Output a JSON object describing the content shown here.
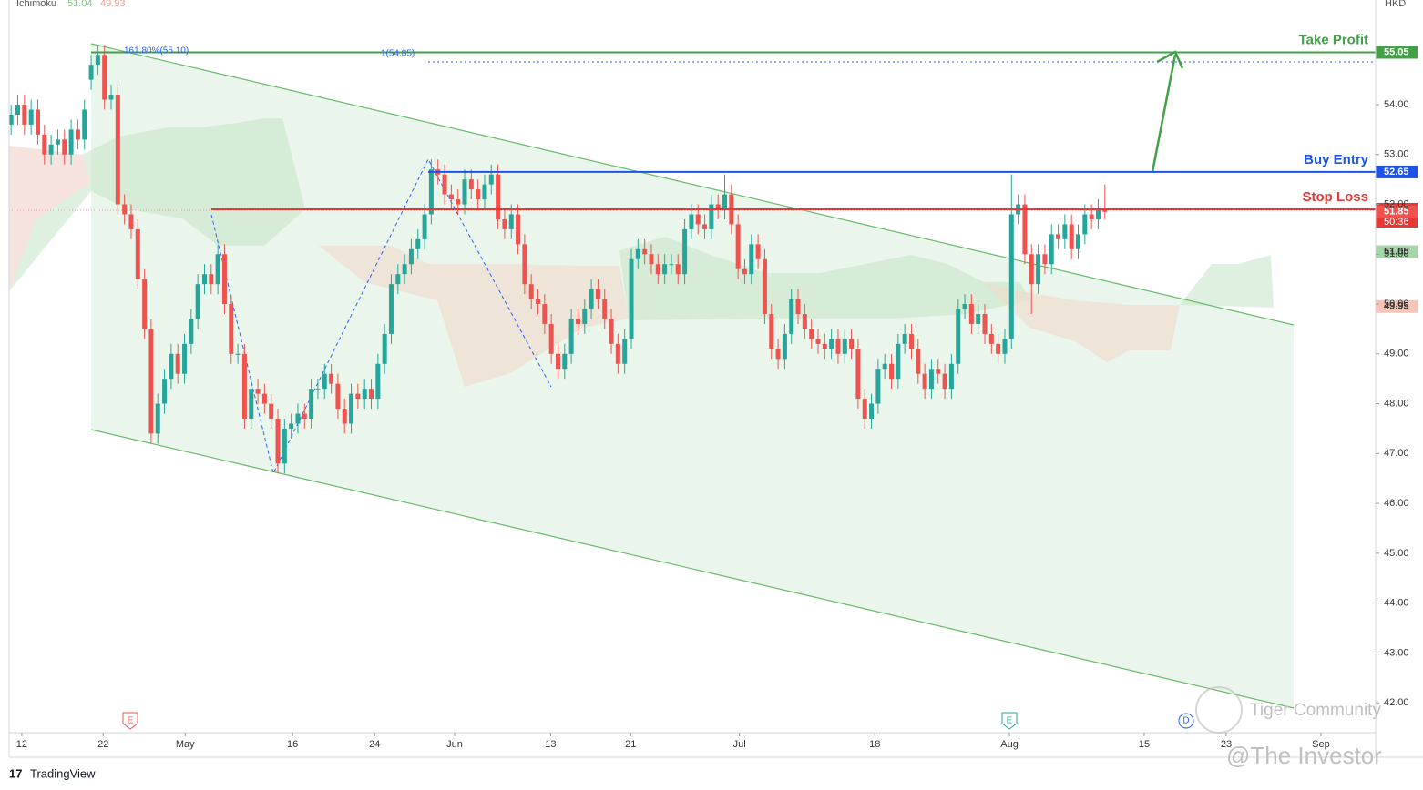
{
  "chart_data": {
    "type": "candlestick",
    "indicator": {
      "name": "Ichimoku",
      "values": [
        51.04,
        49.93
      ],
      "colors": [
        "#81c784",
        "#e5a39a"
      ]
    },
    "currency": "HKD",
    "brand": "TradingView",
    "watermarks": [
      "Tiger Community",
      "@The Investor"
    ],
    "event_markers": [
      "E",
      "E",
      "D"
    ],
    "fib_labels": [
      "161.80%(55.10)",
      "1(54.85)"
    ],
    "countdown": "50:36",
    "up_color": "#26a69a",
    "down_color": "#ef5350",
    "ylim": [
      41.4,
      56.1
    ],
    "yticks": [
      {
        "value": 42,
        "label": "42.00"
      },
      {
        "value": 43,
        "label": "43.00"
      },
      {
        "value": 44,
        "label": "44.00"
      },
      {
        "value": 45,
        "label": "45.00"
      },
      {
        "value": 46,
        "label": "46.00"
      },
      {
        "value": 47,
        "label": "47.00"
      },
      {
        "value": 48,
        "label": "48.00"
      },
      {
        "value": 49,
        "label": "49.00"
      },
      {
        "value": 50,
        "label": "50.00"
      },
      {
        "value": 51,
        "label": "51.00"
      },
      {
        "value": 52,
        "label": "52.00"
      },
      {
        "value": 53,
        "label": "53.00"
      },
      {
        "value": 54,
        "label": "54.00"
      }
    ],
    "xlim": [
      -0.3,
      204.6
    ],
    "xticks": [
      {
        "value": 1.6,
        "label": "12"
      },
      {
        "value": 13.8,
        "label": "22"
      },
      {
        "value": 26.1,
        "label": "May"
      },
      {
        "value": 42.2,
        "label": "16"
      },
      {
        "value": 54.5,
        "label": "24"
      },
      {
        "value": 66.5,
        "label": "Jun"
      },
      {
        "value": 80.9,
        "label": "13"
      },
      {
        "value": 92.9,
        "label": "21"
      },
      {
        "value": 109.2,
        "label": "Jul"
      },
      {
        "value": 129.5,
        "label": "18"
      },
      {
        "value": 149.7,
        "label": "Aug"
      },
      {
        "value": 169.9,
        "label": "15"
      },
      {
        "value": 182.2,
        "label": "23"
      },
      {
        "value": 196.4,
        "label": "Sep"
      }
    ],
    "levels": [
      {
        "name": "Take Profit",
        "value": 55.05,
        "color": "#43a047"
      },
      {
        "name": "Buy Entry",
        "value": 52.65,
        "color": "#1e53e5"
      },
      {
        "name": "Stop Loss",
        "value": 51.9,
        "color": "#e53935"
      }
    ],
    "price_labels": [
      {
        "value": 55.05,
        "label": "55.05",
        "color": "#43a047"
      },
      {
        "value": 52.65,
        "label": "52.65",
        "color": "#1e53e5"
      },
      {
        "value": 51.9,
        "label": "51.90",
        "color": "#e53935"
      },
      {
        "value": 51.85,
        "label": "51.85",
        "color": "#ef5350"
      },
      {
        "value": 51.05,
        "label": "51.05",
        "color": "#a5d6a7"
      },
      {
        "value": 49.95,
        "label": "49.95",
        "color": "#f5c6b8"
      }
    ],
    "candles": [
      [
        53.6,
        54.0,
        53.4,
        53.8
      ],
      [
        53.8,
        54.2,
        53.6,
        54.0
      ],
      [
        54.0,
        54.2,
        53.4,
        53.6
      ],
      [
        53.6,
        54.1,
        53.4,
        53.9
      ],
      [
        53.9,
        54.1,
        53.2,
        53.4
      ],
      [
        53.4,
        53.6,
        52.8,
        53.0
      ],
      [
        53.0,
        53.4,
        52.8,
        53.2
      ],
      [
        53.2,
        53.5,
        53.0,
        53.3
      ],
      [
        53.3,
        53.5,
        52.8,
        53.0
      ],
      [
        53.0,
        53.7,
        52.8,
        53.5
      ],
      [
        53.5,
        53.7,
        53.1,
        53.3
      ],
      [
        53.3,
        54.1,
        53.1,
        53.9
      ],
      [
        54.5,
        55.0,
        54.3,
        54.8
      ],
      [
        54.8,
        55.2,
        54.6,
        55.0
      ],
      [
        55.0,
        55.2,
        53.9,
        54.1
      ],
      [
        54.1,
        54.4,
        53.9,
        54.2
      ],
      [
        54.2,
        54.4,
        51.8,
        52.0
      ],
      [
        52.0,
        52.2,
        51.6,
        51.8
      ],
      [
        51.8,
        52.0,
        51.3,
        51.5
      ],
      [
        51.5,
        51.7,
        50.3,
        50.5
      ],
      [
        50.5,
        50.7,
        49.3,
        49.5
      ],
      [
        49.5,
        49.7,
        47.2,
        47.4
      ],
      [
        47.4,
        48.2,
        47.2,
        48.0
      ],
      [
        48.0,
        48.7,
        47.8,
        48.5
      ],
      [
        48.5,
        49.2,
        48.3,
        49.0
      ],
      [
        49.0,
        49.2,
        48.4,
        48.6
      ],
      [
        48.6,
        49.4,
        48.4,
        49.2
      ],
      [
        49.2,
        49.9,
        49.0,
        49.7
      ],
      [
        49.7,
        50.6,
        49.5,
        50.4
      ],
      [
        50.4,
        50.8,
        50.2,
        50.6
      ],
      [
        50.6,
        50.8,
        50.2,
        50.4
      ],
      [
        50.4,
        51.2,
        50.2,
        51.0
      ],
      [
        51.0,
        51.2,
        49.8,
        50.0
      ],
      [
        50.0,
        50.2,
        48.8,
        49.0
      ],
      [
        49.0,
        49.2,
        48.8,
        49.0
      ],
      [
        49.0,
        49.2,
        47.5,
        47.7
      ],
      [
        47.7,
        48.5,
        47.5,
        48.3
      ],
      [
        48.3,
        48.5,
        48.0,
        48.2
      ],
      [
        48.2,
        48.4,
        47.8,
        48.0
      ],
      [
        48.0,
        48.2,
        47.5,
        47.7
      ],
      [
        47.7,
        47.9,
        46.6,
        46.8
      ],
      [
        46.8,
        47.7,
        46.6,
        47.5
      ],
      [
        47.5,
        47.8,
        47.3,
        47.6
      ],
      [
        47.6,
        48.0,
        47.4,
        47.8
      ],
      [
        47.8,
        48.0,
        47.5,
        47.7
      ],
      [
        47.7,
        48.5,
        47.5,
        48.3
      ],
      [
        48.3,
        48.5,
        48.1,
        48.3
      ],
      [
        48.3,
        48.8,
        48.1,
        48.6
      ],
      [
        48.6,
        48.8,
        48.2,
        48.4
      ],
      [
        48.4,
        48.6,
        47.7,
        47.9
      ],
      [
        47.9,
        48.1,
        47.4,
        47.6
      ],
      [
        47.6,
        48.4,
        47.4,
        48.2
      ],
      [
        48.2,
        48.4,
        47.9,
        48.1
      ],
      [
        48.1,
        48.5,
        47.9,
        48.3
      ],
      [
        48.3,
        48.5,
        47.9,
        48.1
      ],
      [
        48.1,
        49.0,
        47.9,
        48.8
      ],
      [
        48.8,
        49.6,
        48.6,
        49.4
      ],
      [
        49.4,
        50.6,
        49.2,
        50.4
      ],
      [
        50.4,
        50.8,
        50.2,
        50.6
      ],
      [
        50.6,
        51.0,
        50.4,
        50.8
      ],
      [
        50.8,
        51.3,
        50.6,
        51.1
      ],
      [
        51.1,
        51.5,
        50.9,
        51.3
      ],
      [
        51.3,
        52.0,
        51.1,
        51.8
      ],
      [
        51.8,
        52.9,
        51.6,
        52.7
      ],
      [
        52.7,
        52.9,
        52.4,
        52.6
      ],
      [
        52.6,
        52.8,
        52.0,
        52.2
      ],
      [
        52.2,
        52.4,
        51.9,
        52.1
      ],
      [
        52.1,
        52.3,
        51.8,
        52.0
      ],
      [
        52.0,
        52.7,
        51.8,
        52.5
      ],
      [
        52.5,
        52.7,
        52.1,
        52.3
      ],
      [
        52.3,
        52.5,
        51.9,
        52.1
      ],
      [
        52.1,
        52.6,
        51.9,
        52.4
      ],
      [
        52.4,
        52.8,
        52.2,
        52.6
      ],
      [
        52.6,
        52.8,
        51.5,
        51.7
      ],
      [
        51.7,
        51.9,
        51.3,
        51.5
      ],
      [
        51.5,
        52.0,
        51.3,
        51.8
      ],
      [
        51.8,
        52.0,
        51.0,
        51.2
      ],
      [
        51.2,
        51.4,
        50.2,
        50.4
      ],
      [
        50.4,
        50.6,
        49.9,
        50.1
      ],
      [
        50.1,
        50.3,
        49.8,
        50.0
      ],
      [
        50.0,
        50.2,
        49.4,
        49.6
      ],
      [
        49.6,
        49.8,
        48.8,
        49.0
      ],
      [
        49.0,
        49.2,
        48.5,
        48.7
      ],
      [
        48.7,
        49.2,
        48.5,
        49.0
      ],
      [
        49.0,
        49.9,
        48.8,
        49.7
      ],
      [
        49.7,
        49.9,
        49.4,
        49.6
      ],
      [
        49.6,
        50.1,
        49.4,
        49.9
      ],
      [
        49.9,
        50.5,
        49.7,
        50.3
      ],
      [
        50.3,
        50.5,
        49.9,
        50.1
      ],
      [
        50.1,
        50.3,
        49.5,
        49.7
      ],
      [
        49.7,
        49.9,
        49.0,
        49.2
      ],
      [
        49.2,
        49.4,
        48.6,
        48.8
      ],
      [
        48.8,
        49.5,
        48.6,
        49.3
      ],
      [
        49.3,
        51.1,
        49.1,
        50.9
      ],
      [
        50.9,
        51.3,
        50.7,
        51.1
      ],
      [
        51.1,
        51.3,
        50.8,
        51.0
      ],
      [
        51.0,
        51.2,
        50.6,
        50.8
      ],
      [
        50.8,
        51.0,
        50.4,
        50.6
      ],
      [
        50.6,
        51.0,
        50.4,
        50.8
      ],
      [
        50.8,
        51.0,
        50.6,
        50.8
      ],
      [
        50.8,
        51.0,
        50.4,
        50.6
      ],
      [
        50.6,
        51.7,
        50.4,
        51.5
      ],
      [
        51.5,
        52.0,
        51.3,
        51.8
      ],
      [
        51.8,
        52.0,
        51.4,
        51.6
      ],
      [
        51.6,
        51.8,
        51.3,
        51.5
      ],
      [
        51.5,
        52.2,
        51.3,
        52.0
      ],
      [
        52.0,
        52.2,
        51.7,
        51.9
      ],
      [
        51.9,
        52.6,
        51.7,
        52.2
      ],
      [
        52.2,
        52.4,
        51.4,
        51.6
      ],
      [
        51.6,
        51.8,
        50.5,
        50.7
      ],
      [
        50.7,
        50.9,
        50.4,
        50.6
      ],
      [
        50.6,
        51.4,
        50.4,
        51.2
      ],
      [
        51.2,
        51.4,
        50.7,
        50.9
      ],
      [
        50.9,
        51.1,
        49.6,
        49.8
      ],
      [
        49.8,
        50.0,
        48.9,
        49.1
      ],
      [
        49.1,
        49.3,
        48.7,
        48.9
      ],
      [
        48.9,
        49.6,
        48.7,
        49.4
      ],
      [
        49.4,
        50.3,
        49.2,
        50.1
      ],
      [
        50.1,
        50.3,
        49.6,
        49.8
      ],
      [
        49.8,
        50.0,
        49.3,
        49.5
      ],
      [
        49.5,
        49.7,
        49.1,
        49.3
      ],
      [
        49.3,
        49.5,
        49.0,
        49.2
      ],
      [
        49.2,
        49.4,
        48.9,
        49.1
      ],
      [
        49.1,
        49.5,
        48.9,
        49.3
      ],
      [
        49.3,
        49.5,
        48.8,
        49.0
      ],
      [
        49.0,
        49.5,
        48.8,
        49.3
      ],
      [
        49.3,
        49.5,
        48.9,
        49.1
      ],
      [
        49.1,
        49.3,
        47.9,
        48.1
      ],
      [
        48.1,
        48.3,
        47.5,
        47.7
      ],
      [
        47.7,
        48.2,
        47.5,
        48.0
      ],
      [
        48.0,
        48.9,
        47.8,
        48.7
      ],
      [
        48.7,
        49.0,
        48.5,
        48.8
      ],
      [
        48.8,
        49.0,
        48.3,
        48.5
      ],
      [
        48.5,
        49.4,
        48.3,
        49.2
      ],
      [
        49.2,
        49.6,
        49.0,
        49.4
      ],
      [
        49.4,
        49.6,
        48.9,
        49.1
      ],
      [
        49.1,
        49.3,
        48.4,
        48.6
      ],
      [
        48.6,
        48.8,
        48.1,
        48.3
      ],
      [
        48.3,
        48.9,
        48.1,
        48.7
      ],
      [
        48.7,
        48.9,
        48.4,
        48.6
      ],
      [
        48.6,
        48.8,
        48.1,
        48.3
      ],
      [
        48.3,
        49.0,
        48.1,
        48.8
      ],
      [
        48.8,
        50.1,
        48.6,
        49.9
      ],
      [
        49.9,
        50.2,
        49.7,
        50.0
      ],
      [
        50.0,
        50.2,
        49.4,
        49.6
      ],
      [
        49.6,
        50.0,
        49.4,
        49.8
      ],
      [
        49.8,
        50.0,
        49.2,
        49.4
      ],
      [
        49.4,
        49.6,
        49.0,
        49.2
      ],
      [
        49.2,
        49.4,
        48.8,
        49.0
      ],
      [
        49.0,
        49.5,
        48.8,
        49.3
      ],
      [
        49.3,
        52.6,
        49.1,
        51.8
      ],
      [
        51.8,
        52.2,
        51.6,
        52.0
      ],
      [
        52.0,
        52.2,
        50.8,
        51.0
      ],
      [
        51.0,
        51.2,
        49.8,
        50.4
      ],
      [
        50.4,
        51.2,
        50.2,
        51.0
      ],
      [
        51.0,
        51.2,
        50.6,
        50.8
      ],
      [
        50.8,
        51.6,
        50.6,
        51.4
      ],
      [
        51.4,
        51.6,
        51.1,
        51.3
      ],
      [
        51.3,
        51.8,
        51.1,
        51.6
      ],
      [
        51.6,
        51.8,
        50.9,
        51.1
      ],
      [
        51.1,
        51.6,
        50.9,
        51.4
      ],
      [
        51.4,
        52.0,
        51.2,
        51.8
      ],
      [
        51.8,
        52.0,
        51.5,
        51.7
      ],
      [
        51.7,
        52.1,
        51.5,
        51.9
      ],
      [
        51.9,
        52.4,
        51.7,
        51.85
      ]
    ]
  }
}
